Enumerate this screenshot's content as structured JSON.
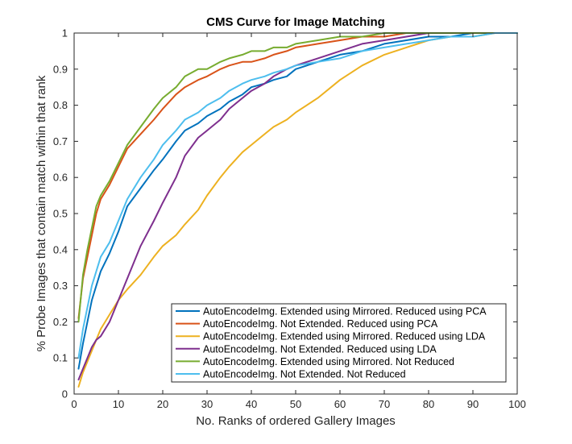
{
  "chart_data": {
    "type": "line",
    "title": "CMS Curve for Image Matching",
    "xlabel": "No. Ranks of ordered Gallery Images",
    "ylabel": "% Probe Images that contain match within that rank",
    "xlim": [
      0,
      100
    ],
    "ylim": [
      0,
      1
    ],
    "xticks": [
      0,
      10,
      20,
      30,
      40,
      50,
      60,
      70,
      80,
      90,
      100
    ],
    "yticks": [
      0,
      0.1,
      0.2,
      0.3,
      0.4,
      0.5,
      0.6,
      0.7,
      0.8,
      0.9,
      1
    ],
    "xtick_labels": [
      "0",
      "10",
      "20",
      "30",
      "40",
      "50",
      "60",
      "70",
      "80",
      "90",
      "100"
    ],
    "ytick_labels": [
      "0",
      "0.1",
      "0.2",
      "0.3",
      "0.4",
      "0.5",
      "0.6",
      "0.7",
      "0.8",
      "0.9",
      "1"
    ],
    "grid": false,
    "legend_position": "bottom-right",
    "x": [
      1,
      2,
      3,
      4,
      5,
      6,
      8,
      10,
      12,
      15,
      18,
      20,
      23,
      25,
      28,
      30,
      33,
      35,
      38,
      40,
      43,
      45,
      48,
      50,
      55,
      60,
      65,
      70,
      75,
      80,
      85,
      90,
      95,
      100
    ],
    "series": [
      {
        "name": "AutoEncodeImg. Extended using Mirrored. Reduced using PCA",
        "color": "#0072BD",
        "values": [
          0.07,
          0.14,
          0.2,
          0.26,
          0.3,
          0.34,
          0.39,
          0.45,
          0.52,
          0.57,
          0.62,
          0.65,
          0.7,
          0.73,
          0.75,
          0.77,
          0.79,
          0.81,
          0.83,
          0.85,
          0.86,
          0.87,
          0.88,
          0.9,
          0.92,
          0.94,
          0.95,
          0.97,
          0.98,
          0.99,
          0.99,
          1,
          1,
          1
        ]
      },
      {
        "name": "AutoEncodeImg. Not Extended. Reduced using PCA",
        "color": "#D95319",
        "values": [
          0.21,
          0.32,
          0.38,
          0.44,
          0.5,
          0.54,
          0.58,
          0.63,
          0.68,
          0.72,
          0.76,
          0.79,
          0.83,
          0.85,
          0.87,
          0.88,
          0.9,
          0.91,
          0.92,
          0.92,
          0.93,
          0.94,
          0.95,
          0.96,
          0.97,
          0.98,
          0.99,
          0.99,
          1,
          1,
          1,
          1,
          1,
          1
        ]
      },
      {
        "name": "AutoEncodeImg. Extended using Mirrored. Reduced using LDA",
        "color": "#EDB120",
        "values": [
          0.02,
          0.06,
          0.09,
          0.12,
          0.15,
          0.18,
          0.22,
          0.26,
          0.29,
          0.33,
          0.38,
          0.41,
          0.44,
          0.47,
          0.51,
          0.55,
          0.6,
          0.63,
          0.67,
          0.69,
          0.72,
          0.74,
          0.76,
          0.78,
          0.82,
          0.87,
          0.91,
          0.94,
          0.96,
          0.98,
          0.99,
          0.99,
          1,
          1
        ]
      },
      {
        "name": "AutoEncodeImg. Not Extended. Reduced using LDA",
        "color": "#7E2F8E",
        "values": [
          0.04,
          0.07,
          0.1,
          0.13,
          0.15,
          0.16,
          0.2,
          0.26,
          0.32,
          0.41,
          0.48,
          0.53,
          0.6,
          0.66,
          0.71,
          0.73,
          0.76,
          0.79,
          0.82,
          0.84,
          0.86,
          0.88,
          0.9,
          0.91,
          0.93,
          0.95,
          0.97,
          0.98,
          0.99,
          1,
          1,
          1,
          1,
          1
        ]
      },
      {
        "name": "AutoEncodeImg. Extended using Mirrored. Not Reduced",
        "color": "#77AC30",
        "values": [
          0.2,
          0.33,
          0.4,
          0.46,
          0.52,
          0.55,
          0.59,
          0.64,
          0.69,
          0.74,
          0.79,
          0.82,
          0.85,
          0.88,
          0.9,
          0.9,
          0.92,
          0.93,
          0.94,
          0.95,
          0.95,
          0.96,
          0.96,
          0.97,
          0.98,
          0.99,
          0.99,
          1,
          1,
          1,
          1,
          1,
          1,
          1
        ]
      },
      {
        "name": "AutoEncodeImg. Not Extended. Not Reduced",
        "color": "#4DBEEE",
        "values": [
          0.1,
          0.18,
          0.24,
          0.3,
          0.34,
          0.38,
          0.42,
          0.48,
          0.54,
          0.6,
          0.65,
          0.69,
          0.73,
          0.76,
          0.78,
          0.8,
          0.82,
          0.84,
          0.86,
          0.87,
          0.88,
          0.89,
          0.9,
          0.91,
          0.92,
          0.93,
          0.95,
          0.96,
          0.97,
          0.98,
          0.99,
          0.99,
          1,
          1
        ]
      }
    ]
  }
}
